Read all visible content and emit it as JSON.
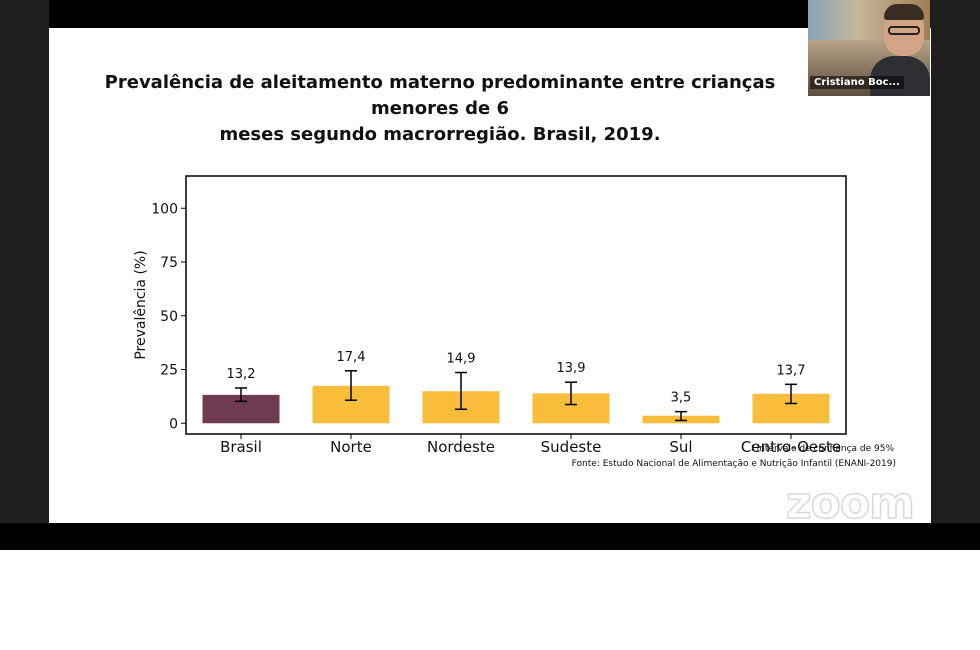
{
  "meeting": {
    "participant_name": "Cristiano Boc...",
    "watermark": "zoom"
  },
  "slide": {
    "title_line1": "Prevalência de aleitamento materno predominante entre crianças menores de 6",
    "title_line2": "meses segundo macrorregião. Brasil, 2019.",
    "note_ci": "Intervalo de confiança de 95%",
    "note_ci_icon": "error-bar-icon",
    "note_source": "Fonte: Estudo Nacional de Alimentação e Nutrição Infantil (ENANI-2019)"
  },
  "colors": {
    "highlight_bar": "#6e3b52",
    "region_bar": "#f9bd3c",
    "error_bar": "#000000"
  },
  "chart_data": {
    "type": "bar",
    "categories": [
      "Brasil",
      "Norte",
      "Nordeste",
      "Sudeste",
      "Sul",
      "Centro-Oeste"
    ],
    "values": [
      13.2,
      17.4,
      14.9,
      13.9,
      3.5,
      13.7
    ],
    "value_labels": [
      "13,2",
      "17,4",
      "14,9",
      "13,9",
      "3,5",
      "13,7"
    ],
    "ci_lower": [
      10.2,
      10.7,
      6.5,
      8.7,
      1.3,
      9.2
    ],
    "ci_upper": [
      16.4,
      24.4,
      23.6,
      19.1,
      5.4,
      18.1
    ],
    "bar_colors": [
      "#6e3b52",
      "#f9bd3c",
      "#f9bd3c",
      "#f9bd3c",
      "#f9bd3c",
      "#f9bd3c"
    ],
    "ylabel": "Prevalência (%)",
    "yticks": [
      0,
      25,
      50,
      75,
      100
    ],
    "ylim": [
      -5,
      115
    ],
    "grid": false,
    "legend": "none"
  }
}
